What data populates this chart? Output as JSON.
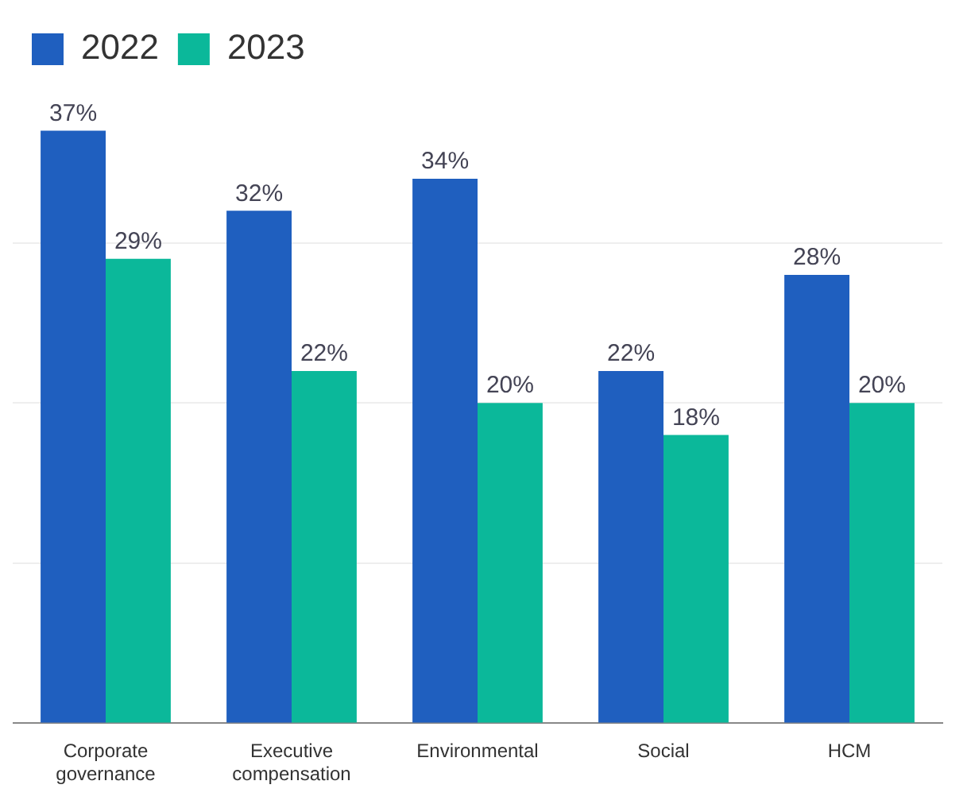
{
  "chart_data": {
    "type": "bar",
    "categories": [
      "Corporate governance",
      "Executive compensation",
      "Environmental",
      "Social",
      "HCM"
    ],
    "series": [
      {
        "name": "2022",
        "color": "#1f5fbf",
        "values": [
          37,
          32,
          34,
          22,
          28
        ],
        "value_labels": [
          "37%",
          "32%",
          "34%",
          "22%",
          "28%"
        ]
      },
      {
        "name": "2023",
        "color": "#0bb89a",
        "values": [
          29,
          22,
          20,
          18,
          20
        ],
        "value_labels": [
          "29%",
          "22%",
          "20%",
          "18%",
          "20%"
        ]
      }
    ],
    "yticks": [
      {
        "value": 0,
        "label": null
      },
      {
        "value": 10,
        "label": null
      },
      {
        "value": 20,
        "label": null
      },
      {
        "value": 30,
        "label": null
      }
    ],
    "tick_labels": "x",
    "grid": "y",
    "legend": "top left"
  }
}
